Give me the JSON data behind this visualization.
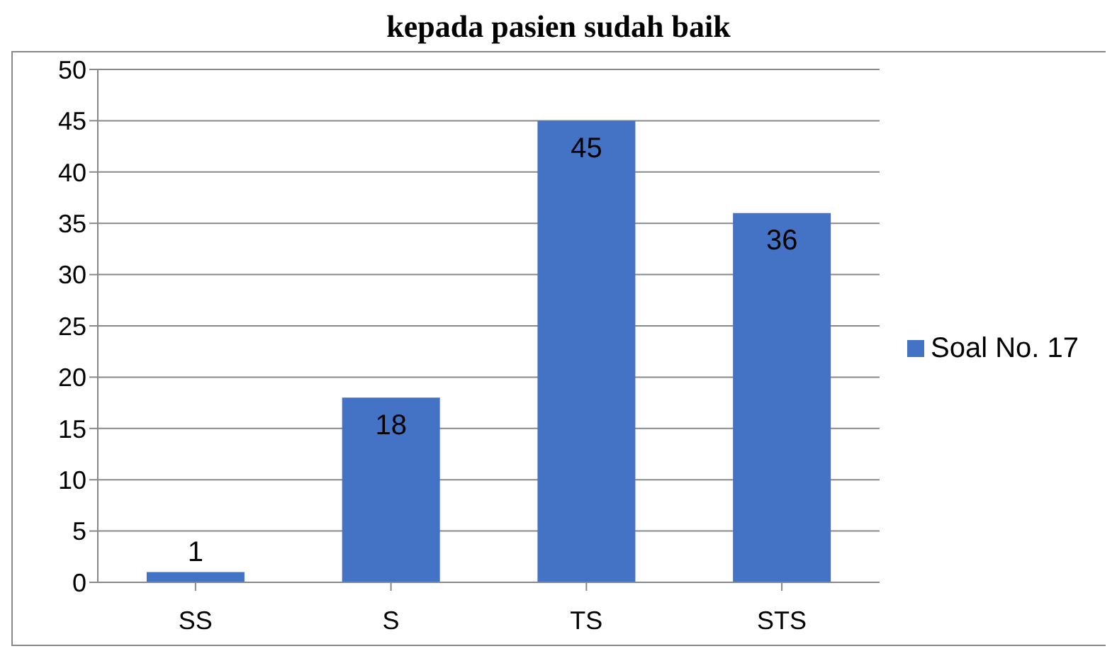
{
  "chart_data": {
    "type": "bar",
    "title": "kepada pasien sudah baik",
    "categories": [
      "SS",
      "S",
      "TS",
      "STS"
    ],
    "series": [
      {
        "name": "Soal No. 17",
        "color": "#4472c4",
        "values": [
          1,
          18,
          45,
          36
        ]
      }
    ],
    "ylim": [
      0,
      50
    ],
    "yticks": [
      0,
      5,
      10,
      15,
      20,
      25,
      30,
      35,
      40,
      45,
      50
    ],
    "grid": "y",
    "legend": "right",
    "data_labels": true
  }
}
